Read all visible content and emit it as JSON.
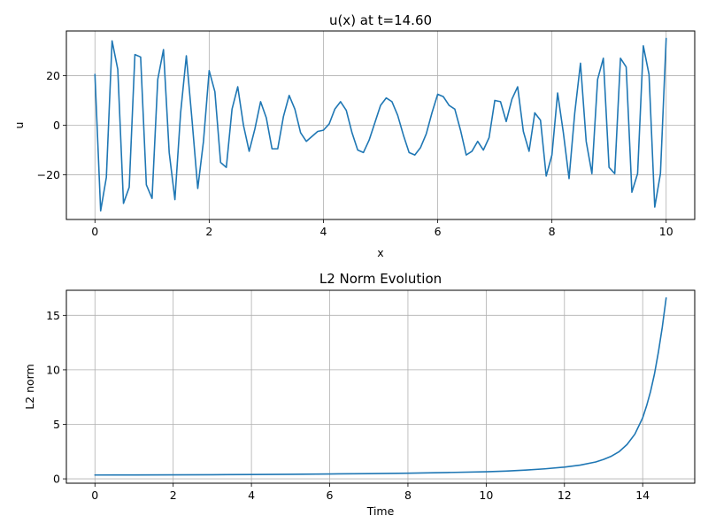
{
  "chart_data": [
    {
      "type": "line",
      "title": "u(x) at t=14.60",
      "xlabel": "x",
      "ylabel": "u",
      "xlim": [
        -0.5,
        10.5
      ],
      "ylim": [
        -38,
        38
      ],
      "xticks": [
        0,
        2,
        4,
        6,
        8,
        10
      ],
      "yticks": [
        -20,
        0,
        20
      ],
      "grid": true,
      "color": "#1f77b4",
      "x": [
        0.0,
        0.1,
        0.2,
        0.3,
        0.4,
        0.5,
        0.6,
        0.7,
        0.8,
        0.9,
        1.0,
        1.1,
        1.2,
        1.3,
        1.4,
        1.5,
        1.6,
        1.7,
        1.8,
        1.9,
        2.0,
        2.1,
        2.2,
        2.3,
        2.4,
        2.5,
        2.6,
        2.7,
        2.8,
        2.9,
        3.0,
        3.1,
        3.2,
        3.3,
        3.4,
        3.5,
        3.6,
        3.7,
        3.8,
        3.9,
        4.0,
        4.1,
        4.2,
        4.3,
        4.4,
        4.5,
        4.6,
        4.7,
        4.8,
        4.9,
        5.0,
        5.1,
        5.2,
        5.3,
        5.4,
        5.5,
        5.6,
        5.7,
        5.8,
        5.9,
        6.0,
        6.1,
        6.2,
        6.3,
        6.4,
        6.5,
        6.6,
        6.7,
        6.8,
        6.9,
        7.0,
        7.1,
        7.2,
        7.3,
        7.4,
        7.5,
        7.6,
        7.7,
        7.8,
        7.9,
        8.0,
        8.1,
        8.2,
        8.3,
        8.4,
        8.5,
        8.6,
        8.7,
        8.8,
        8.9,
        9.0,
        9.1,
        9.2,
        9.3,
        9.4,
        9.5,
        9.6,
        9.7,
        9.8,
        9.9,
        10.0
      ],
      "y": [
        20.5,
        -34.5,
        -21,
        34,
        22.5,
        -31.5,
        -25,
        28.5,
        27.5,
        -24,
        -29.5,
        18.5,
        30.5,
        -11,
        -30,
        5,
        28,
        2,
        -25.5,
        -6.5,
        22,
        13.5,
        -15,
        -17,
        6.5,
        15.5,
        0,
        -10.5,
        -1.5,
        9.5,
        3,
        -9.5,
        -9.5,
        3.5,
        12,
        6.5,
        -3,
        -6.5,
        -4.5,
        -2.5,
        -2,
        0.5,
        6.5,
        9.5,
        6,
        -3,
        -10,
        -11,
        -6,
        1,
        8,
        11,
        9.5,
        4,
        -4,
        -11,
        -12,
        -9,
        -3.5,
        5,
        12.5,
        11.5,
        8,
        6.5,
        -2,
        -12,
        -10.5,
        -6.5,
        -10,
        -5,
        10,
        9.5,
        1.5,
        10.5,
        15.5,
        -2.5,
        -10.5,
        5,
        2,
        -20.5,
        -12,
        13,
        -3,
        -21.5,
        5,
        25,
        -6.5,
        -19.5,
        18.5,
        27,
        -17,
        -19.5,
        27,
        23.5,
        -27,
        -19.5,
        32,
        20.5,
        -33,
        -19.5,
        35
      ]
    },
    {
      "type": "line",
      "title": "L2 Norm Evolution",
      "xlabel": "Time",
      "ylabel": "L2 norm",
      "xlim": [
        -0.73,
        15.33
      ],
      "ylim": [
        -0.4,
        17.3
      ],
      "xticks": [
        0,
        2,
        4,
        6,
        8,
        10,
        12,
        14
      ],
      "yticks": [
        0,
        5,
        10,
        15
      ],
      "grid": true,
      "color": "#1f77b4",
      "x": [
        0,
        1,
        2,
        3,
        4,
        5,
        6,
        7,
        8,
        9,
        10,
        10.5,
        11,
        11.5,
        12,
        12.4,
        12.8,
        13.0,
        13.2,
        13.4,
        13.6,
        13.8,
        14.0,
        14.1,
        14.2,
        14.3,
        14.4,
        14.5,
        14.6
      ],
      "y": [
        0.35,
        0.36,
        0.37,
        0.38,
        0.4,
        0.42,
        0.45,
        0.48,
        0.52,
        0.58,
        0.65,
        0.71,
        0.8,
        0.92,
        1.08,
        1.26,
        1.55,
        1.78,
        2.08,
        2.5,
        3.15,
        4.1,
        5.6,
        6.7,
        8.0,
        9.6,
        11.6,
        13.9,
        16.6
      ]
    }
  ]
}
